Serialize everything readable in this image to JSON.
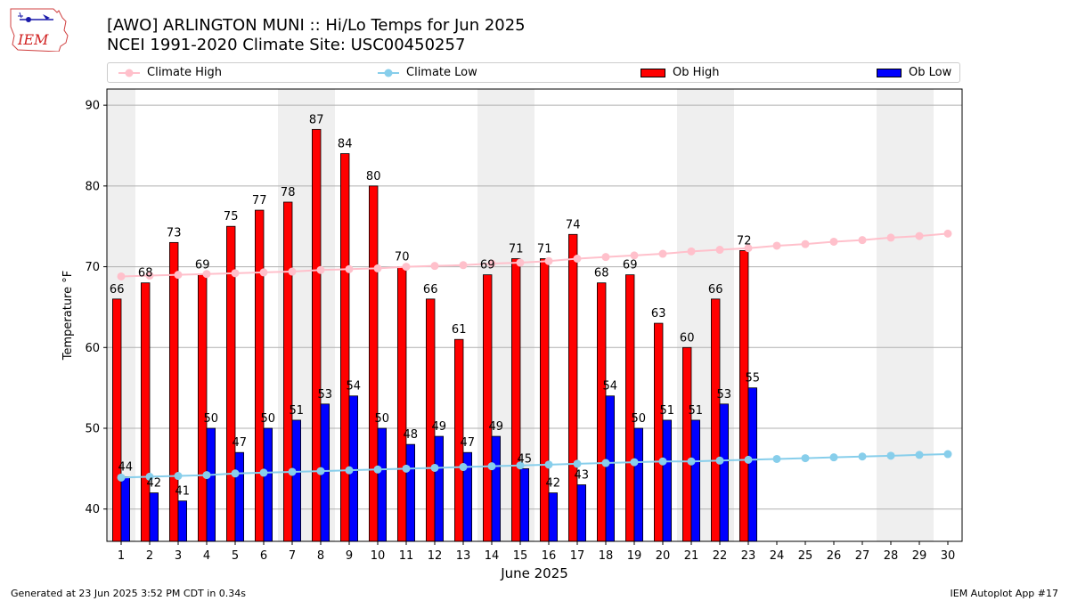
{
  "header": {
    "title_line1": "[AWO] ARLINGTON MUNI :: Hi/Lo Temps for Jun 2025",
    "title_line2": "NCEI 1991-2020 Climate Site: USC00450257",
    "logo_text": "IEM"
  },
  "legend": [
    {
      "label": "Climate High",
      "color": "#ffc0cb",
      "kind": "line-marker"
    },
    {
      "label": "Climate Low",
      "color": "#87ceeb",
      "kind": "line-marker"
    },
    {
      "label": "Ob High",
      "color": "#ff0000",
      "kind": "box"
    },
    {
      "label": "Ob Low",
      "color": "#0000ff",
      "kind": "box"
    }
  ],
  "footer": {
    "generated": "Generated at 23 Jun 2025 3:52 PM CDT in 0.34s",
    "app": "IEM Autoplot App #17"
  },
  "chart_data": {
    "type": "bar",
    "xlabel": "June 2025",
    "ylabel": "Temperature °F",
    "ylim": [
      36,
      92
    ],
    "yticks": [
      40,
      50,
      60,
      70,
      80,
      90
    ],
    "grid": "horizontal",
    "legend_position": "top",
    "weekend_shading_color": "#efefef",
    "weekend_days": [
      1,
      7,
      8,
      14,
      15,
      21,
      22,
      28,
      29
    ],
    "days": [
      1,
      2,
      3,
      4,
      5,
      6,
      7,
      8,
      9,
      10,
      11,
      12,
      13,
      14,
      15,
      16,
      17,
      18,
      19,
      20,
      21,
      22,
      23,
      24,
      25,
      26,
      27,
      28,
      29,
      30
    ],
    "series": [
      {
        "name": "Ob High",
        "color": "#ff0000",
        "type": "bar",
        "values": [
          66,
          68,
          73,
          69,
          75,
          77,
          78,
          87,
          84,
          80,
          70,
          66,
          61,
          69,
          71,
          71,
          74,
          68,
          69,
          63,
          60,
          66,
          72
        ]
      },
      {
        "name": "Ob Low",
        "color": "#0000ff",
        "type": "bar",
        "values": [
          44,
          42,
          41,
          50,
          47,
          50,
          51,
          53,
          54,
          50,
          48,
          49,
          47,
          49,
          45,
          42,
          43,
          54,
          50,
          51,
          51,
          53,
          55
        ]
      },
      {
        "name": "Climate High",
        "color": "#ffc0cb",
        "type": "line",
        "values": [
          68.8,
          68.9,
          69.0,
          69.1,
          69.2,
          69.3,
          69.4,
          69.6,
          69.7,
          69.8,
          70.0,
          70.1,
          70.2,
          70.4,
          70.5,
          70.7,
          71.0,
          71.2,
          71.4,
          71.6,
          71.9,
          72.1,
          72.3,
          72.6,
          72.8,
          73.1,
          73.3,
          73.6,
          73.8,
          74.1
        ]
      },
      {
        "name": "Climate Low",
        "color": "#87ceeb",
        "type": "line",
        "values": [
          43.9,
          44.0,
          44.1,
          44.2,
          44.4,
          44.5,
          44.6,
          44.7,
          44.8,
          44.9,
          45.0,
          45.1,
          45.2,
          45.3,
          45.4,
          45.5,
          45.6,
          45.7,
          45.8,
          45.9,
          45.9,
          46.0,
          46.1,
          46.2,
          46.3,
          46.4,
          46.5,
          46.6,
          46.7,
          46.8
        ]
      }
    ]
  }
}
